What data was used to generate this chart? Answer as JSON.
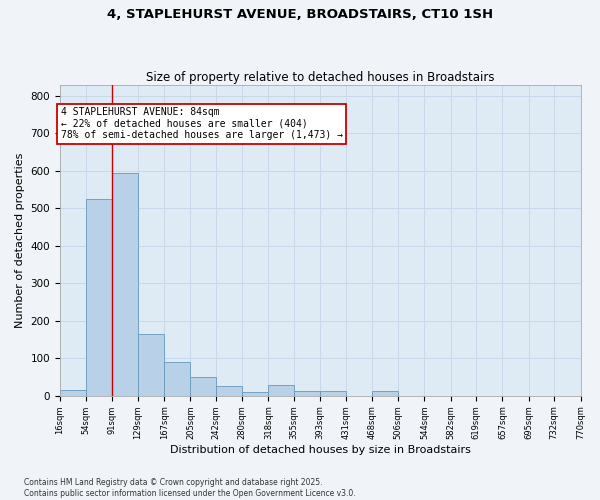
{
  "title1": "4, STAPLEHURST AVENUE, BROADSTAIRS, CT10 1SH",
  "title2": "Size of property relative to detached houses in Broadstairs",
  "xlabel": "Distribution of detached houses by size in Broadstairs",
  "ylabel": "Number of detached properties",
  "footer1": "Contains HM Land Registry data © Crown copyright and database right 2025.",
  "footer2": "Contains public sector information licensed under the Open Government Licence v3.0.",
  "bar_edges": [
    16,
    54,
    91,
    129,
    167,
    205,
    242,
    280,
    318,
    355,
    393,
    431,
    468,
    506,
    544,
    582,
    619,
    657,
    695,
    732,
    770
  ],
  "bar_heights": [
    15,
    525,
    595,
    165,
    90,
    50,
    25,
    10,
    28,
    12,
    12,
    0,
    12,
    0,
    0,
    0,
    0,
    0,
    0,
    0
  ],
  "bar_color": "#b8d0e8",
  "bar_edge_color": "#6699bb",
  "grid_color": "#c8d8ea",
  "bg_color": "#deeaf4",
  "vline_x": 91,
  "vline_color": "#cc0000",
  "annotation_text": "4 STAPLEHURST AVENUE: 84sqm\n← 22% of detached houses are smaller (404)\n78% of semi-detached houses are larger (1,473) →",
  "annotation_box_color": "#ffffff",
  "annotation_box_edge": "#cc0000",
  "ylim": [
    0,
    830
  ],
  "yticks": [
    0,
    100,
    200,
    300,
    400,
    500,
    600,
    700,
    800
  ],
  "tick_labels": [
    "16sqm",
    "54sqm",
    "91sqm",
    "129sqm",
    "167sqm",
    "205sqm",
    "242sqm",
    "280sqm",
    "318sqm",
    "355sqm",
    "393sqm",
    "431sqm",
    "468sqm",
    "506sqm",
    "544sqm",
    "582sqm",
    "619sqm",
    "657sqm",
    "695sqm",
    "732sqm",
    "770sqm"
  ],
  "fig_bg": "#f0f4f8"
}
